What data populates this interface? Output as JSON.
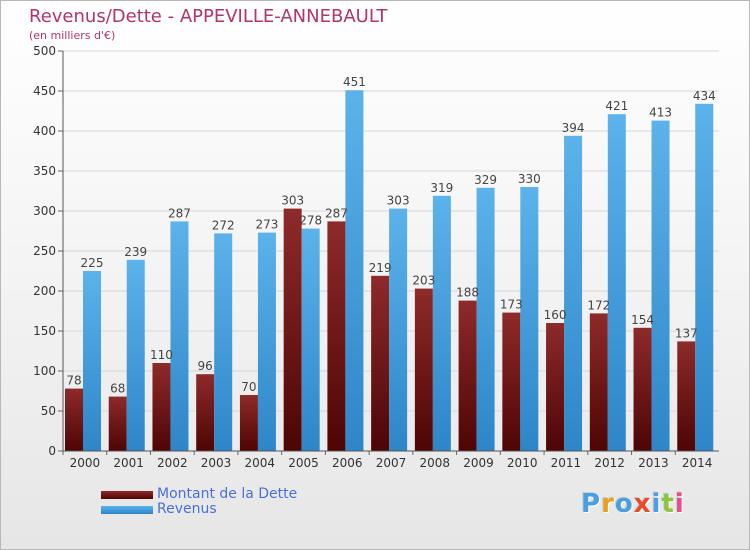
{
  "header": {
    "title": "Revenus/Dette - APPEVILLE-ANNEBAULT",
    "subtitle": "(en milliers d'€)"
  },
  "legend": {
    "items": [
      {
        "label": "Montant de la Dette",
        "color": "#7a1414"
      },
      {
        "label": "Revenus",
        "color": "#4aa3e0"
      }
    ]
  },
  "logo": {
    "text": "Proxiti"
  },
  "chart_data": {
    "type": "bar",
    "categories": [
      "2000",
      "2001",
      "2002",
      "2003",
      "2004",
      "2005",
      "2006",
      "2007",
      "2008",
      "2009",
      "2010",
      "2011",
      "2012",
      "2013",
      "2014"
    ],
    "series": [
      {
        "name": "Montant de la Dette",
        "color": "#7a1414",
        "values": [
          78,
          68,
          110,
          96,
          70,
          303,
          287,
          219,
          203,
          188,
          173,
          160,
          172,
          154,
          137
        ]
      },
      {
        "name": "Revenus",
        "color": "#4aa3e0",
        "values": [
          225,
          239,
          287,
          272,
          273,
          278,
          451,
          303,
          319,
          329,
          330,
          394,
          421,
          413,
          434
        ]
      }
    ],
    "ylim": [
      0,
      500
    ],
    "yticks": [
      0,
      50,
      100,
      150,
      200,
      250,
      300,
      350,
      400,
      450,
      500
    ],
    "grid": true,
    "title": "Revenus/Dette - APPEVILLE-ANNEBAULT",
    "ylabel": "(en milliers d'€)",
    "legend_position": "bottom-left"
  }
}
